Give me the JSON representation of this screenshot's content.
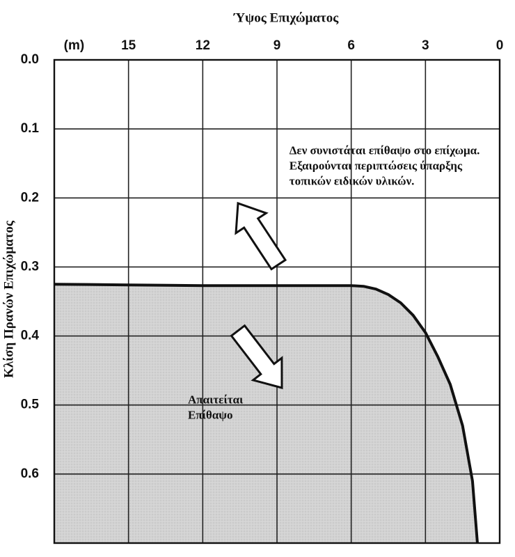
{
  "chart_data": {
    "type": "area",
    "orientation": "image rotated 180 degrees",
    "title": "",
    "xlabel": "Ύψος Επιχώματος",
    "x_unit": "(m)",
    "ylabel": "Κλίση Πρανών Επιχώματος",
    "xlim": [
      0,
      18
    ],
    "ylim": [
      0,
      0.7
    ],
    "x_ticks": [
      "0",
      "3",
      "6",
      "9",
      "12",
      "15"
    ],
    "y_ticks": [
      "0.0",
      "0.1",
      "0.2",
      "0.3",
      "0.4",
      "0.5",
      "0.6"
    ],
    "grid": true,
    "series": [
      {
        "x": [
          0.9,
          1.1,
          1.5,
          2.0,
          2.5,
          3.0,
          3.5,
          4.0,
          4.5,
          5.0,
          5.5,
          6.0,
          9.0,
          12.0,
          15.0,
          18.0
        ],
        "y": [
          0.7,
          0.61,
          0.53,
          0.47,
          0.43,
          0.395,
          0.37,
          0.352,
          0.34,
          0.332,
          0.328,
          0.327,
          0.327,
          0.327,
          0.326,
          0.325
        ]
      }
    ],
    "fill_color": "#d6d6d6",
    "line_color": "#111111",
    "annotations": [
      {
        "lines": [
          "Δεν συνιστάται επίθαψο στο επίχωμα.",
          "Εξαιρούνται περιπτώσεις ύπαρξης",
          "τοπικών ειδικών υλικών."
        ],
        "anchor_x": 8.5,
        "anchor_y": 0.155
      },
      {
        "lines": [
          "Απαιτείται",
          "Επίθαψο"
        ],
        "anchor_x": 12.6,
        "anchor_y": 0.505
      }
    ]
  }
}
